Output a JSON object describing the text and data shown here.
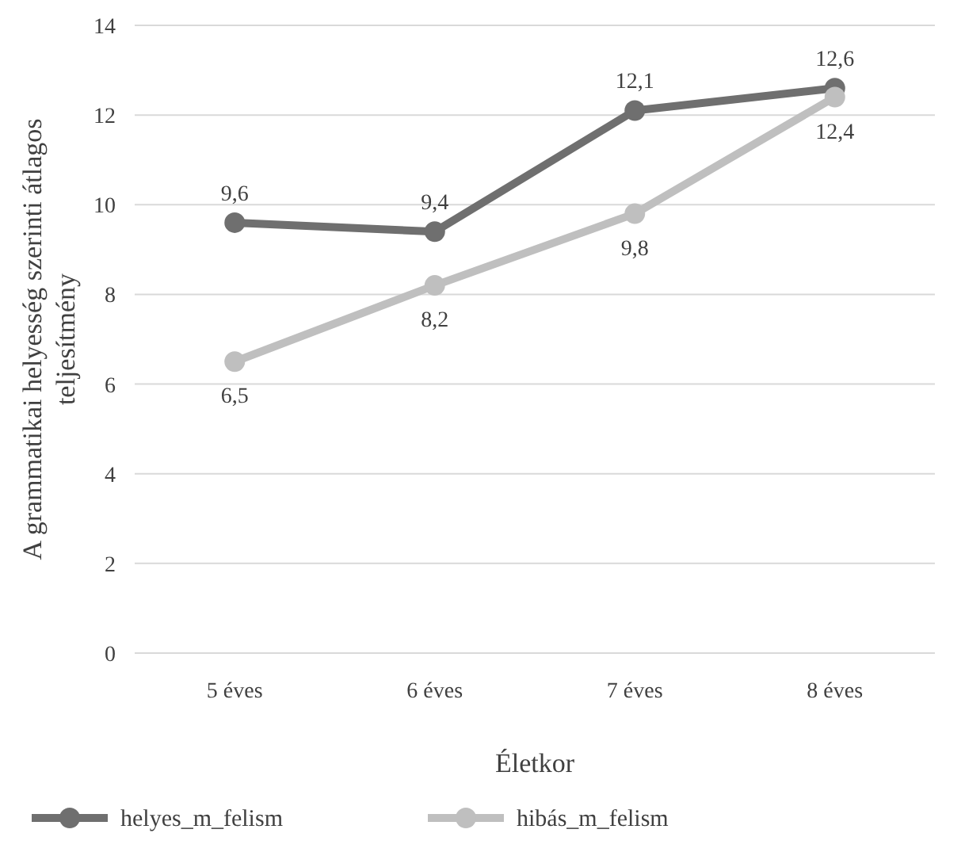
{
  "chart_data": {
    "type": "line",
    "xlabel": "Életkor",
    "ylabel": "A grammatikai helyesség szerinti átlagos teljesítmény",
    "categories": [
      "5 éves",
      "6 éves",
      "7 éves",
      "8 éves"
    ],
    "series": [
      {
        "name": "helyes_m_felism",
        "color": "#6f6f6f",
        "values": [
          9.6,
          9.4,
          12.1,
          12.6
        ],
        "value_labels": [
          "9,6",
          "9,4",
          "12,1",
          "12,6"
        ]
      },
      {
        "name": "hibás_m_felism",
        "color": "#bfbfbf",
        "values": [
          6.5,
          8.2,
          9.8,
          12.4
        ],
        "value_labels": [
          "6,5",
          "8,2",
          "9,8",
          "12,4"
        ]
      }
    ],
    "ylim": [
      0,
      14
    ],
    "yticks": [
      0,
      2,
      4,
      6,
      8,
      10,
      12,
      14
    ],
    "grid": "y",
    "legend": "bottom",
    "marker": "circle"
  }
}
